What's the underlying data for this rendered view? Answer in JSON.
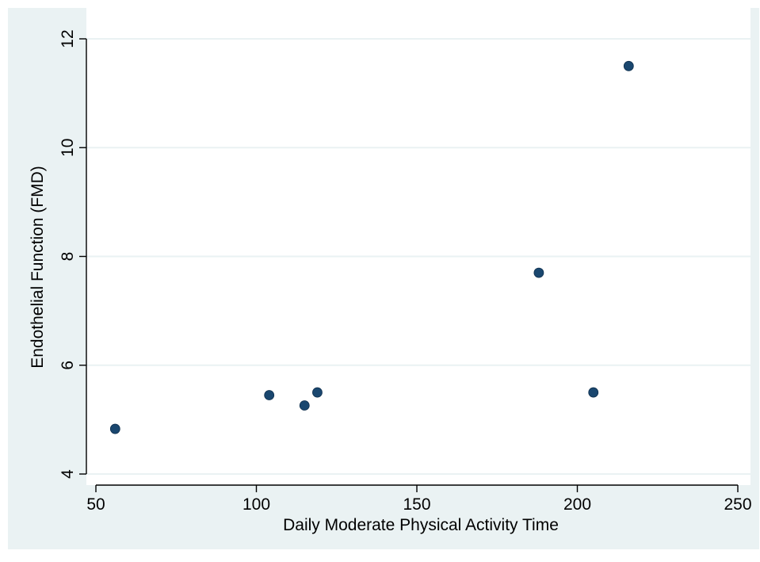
{
  "chart_data": {
    "type": "scatter",
    "title": "",
    "xlabel": "Daily Moderate Physical Activity Time",
    "ylabel": "Endothelial Function (FMD)",
    "xlim": [
      50,
      250
    ],
    "ylim": [
      4,
      12
    ],
    "xticks": [
      50,
      100,
      150,
      200,
      250
    ],
    "yticks": [
      4,
      6,
      8,
      10,
      12
    ],
    "grid": "horizontal",
    "legend": "none",
    "points": [
      {
        "x": 56,
        "y": 4.83
      },
      {
        "x": 104,
        "y": 5.45
      },
      {
        "x": 115,
        "y": 5.26
      },
      {
        "x": 119,
        "y": 5.5
      },
      {
        "x": 188,
        "y": 7.7
      },
      {
        "x": 205,
        "y": 5.5
      },
      {
        "x": 216,
        "y": 11.5
      }
    ],
    "colors": {
      "outer_background": "#eaf2f3",
      "plot_background": "#ffffff",
      "marker": "#1a476f",
      "grid": "#eaf2f3",
      "axis": "#000000"
    }
  }
}
